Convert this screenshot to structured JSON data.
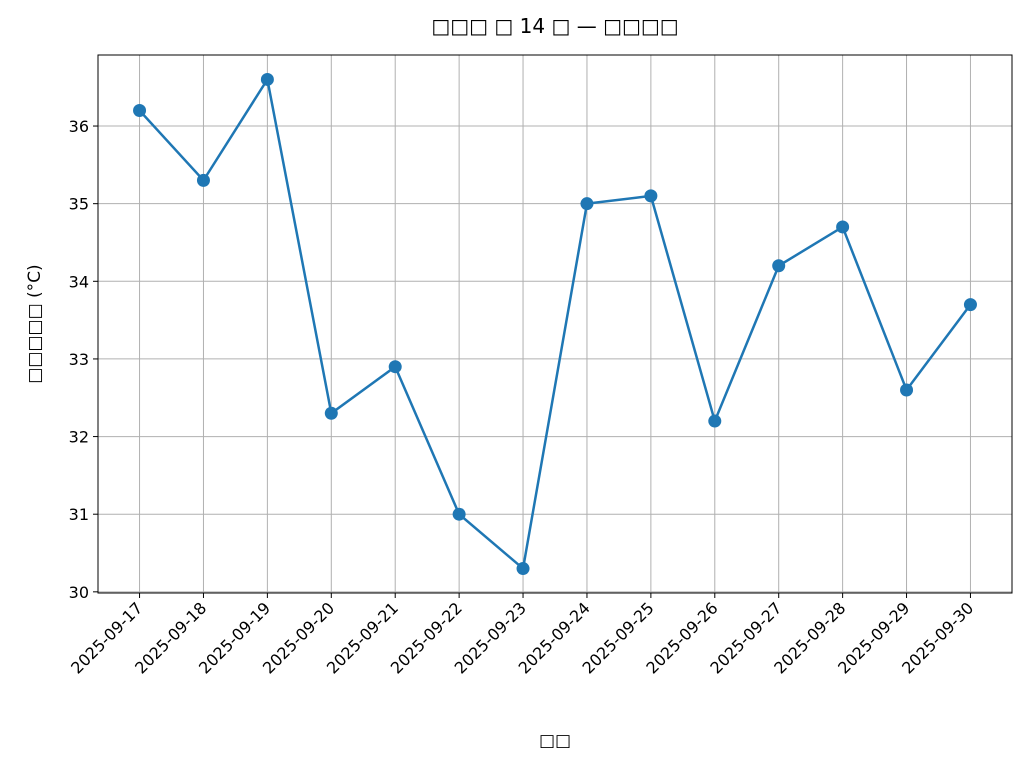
{
  "chart_data": {
    "type": "line",
    "title": "□□□ □ 14 □ — □□□□",
    "x_label": "□□",
    "y_label": "□□□□□ (°C)",
    "categories": [
      "2025-09-17",
      "2025-09-18",
      "2025-09-19",
      "2025-09-20",
      "2025-09-21",
      "2025-09-22",
      "2025-09-23",
      "2025-09-24",
      "2025-09-25",
      "2025-09-26",
      "2025-09-27",
      "2025-09-28",
      "2025-09-29",
      "2025-09-30"
    ],
    "series": [
      {
        "color": "#1f77b4",
        "values": [
          36.2,
          35.3,
          36.6,
          32.3,
          32.9,
          31.0,
          30.3,
          35.0,
          35.1,
          32.2,
          34.2,
          34.7,
          32.6,
          33.7
        ]
      }
    ],
    "ylim": [
      29.985,
      36.915
    ],
    "yticks": [
      30,
      31,
      32,
      33,
      34,
      35,
      36
    ],
    "grid": true
  }
}
